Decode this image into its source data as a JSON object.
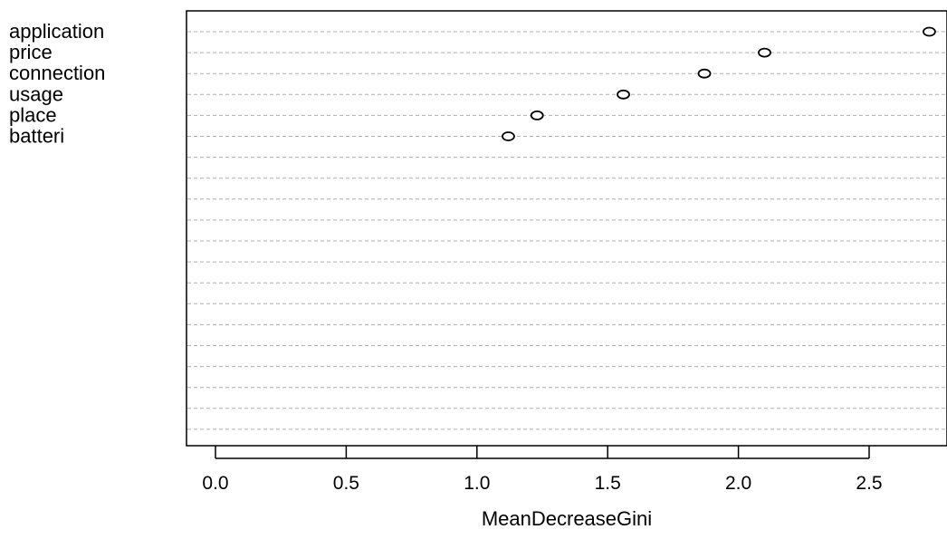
{
  "chart_data": {
    "type": "scatter",
    "subtype": "dotchart",
    "title": "",
    "xlabel": "MeanDecreaseGini",
    "ylabel": "",
    "xlim": [
      -0.1,
      2.8
    ],
    "xticks": [
      "0.0",
      "0.5",
      "1.0",
      "1.5",
      "2.0",
      "2.5"
    ],
    "grid": "horizontal dashed lines",
    "categories": [
      "application",
      "price",
      "connection",
      "usage",
      "place",
      "batteri"
    ],
    "values": [
      2.73,
      2.1,
      1.87,
      1.56,
      1.23,
      1.12
    ],
    "empty_rows_below": 14,
    "colors": {
      "points": "#000000",
      "grid": "#b0b0b0",
      "axis": "#000000"
    }
  }
}
